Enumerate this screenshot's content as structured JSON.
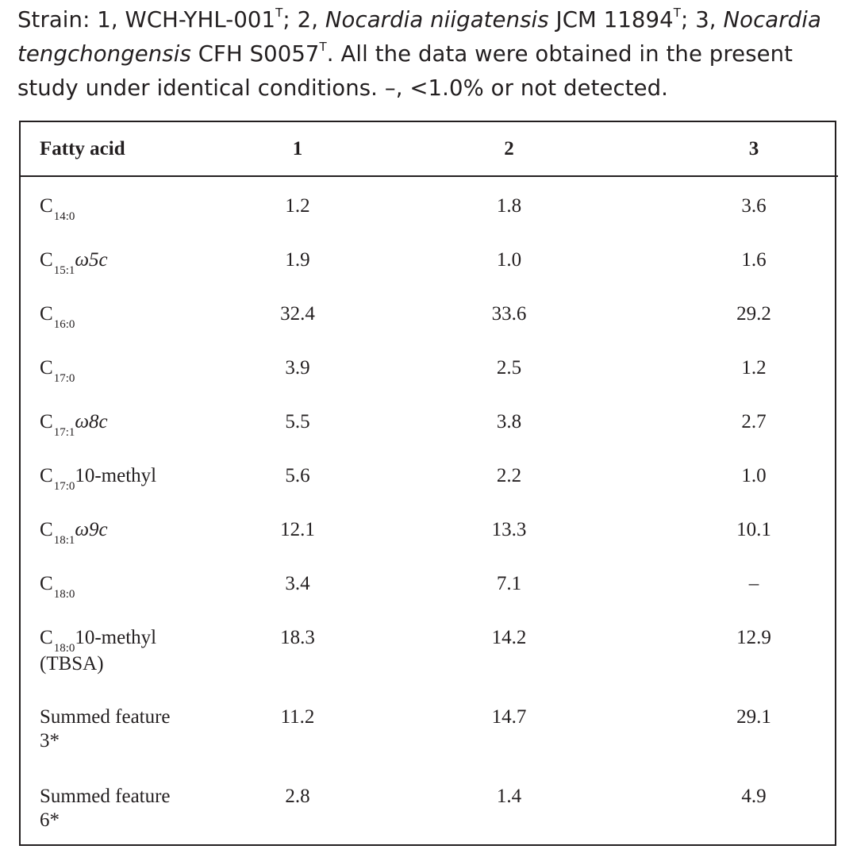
{
  "caption": {
    "p1": "Strain: 1, WCH-YHL-001",
    "sup1": "T",
    "p2": "; 2, ",
    "it1": "Nocardia niigatensis",
    "p3": " JCM 11894",
    "sup2": "T",
    "p4": "; 3, ",
    "it2": "Nocardia tengchongensis",
    "p5": " CFH S0057",
    "sup3": "T",
    "p6": ". All the data were obtained in the present study under identical conditions. –, <1.0% or not detected."
  },
  "table": {
    "headers": [
      "Fatty acid",
      "1",
      "2",
      "3"
    ],
    "rows": [
      {
        "base": "C",
        "sub": "14:0",
        "suffix": "",
        "values": [
          "1.2",
          "1.8",
          "3.6"
        ]
      },
      {
        "base": "C",
        "sub": "15:1",
        "suffix": "ω5c",
        "values": [
          "1.9",
          "1.0",
          "1.6"
        ]
      },
      {
        "base": "C",
        "sub": "16:0",
        "suffix": "",
        "values": [
          "32.4",
          "33.6",
          "29.2"
        ]
      },
      {
        "base": "C",
        "sub": "17:0",
        "suffix": "",
        "values": [
          "3.9",
          "2.5",
          "1.2"
        ]
      },
      {
        "base": "C",
        "sub": "17:1",
        "suffix": "ω8c",
        "values": [
          "5.5",
          "3.8",
          "2.7"
        ]
      },
      {
        "base": "C",
        "sub": "17:0",
        "suffix": "10-methyl",
        "values": [
          "5.6",
          "2.2",
          "1.0"
        ]
      },
      {
        "base": "C",
        "sub": "18:1",
        "suffix": "ω9c",
        "values": [
          "12.1",
          "13.3",
          "10.1"
        ]
      },
      {
        "base": "C",
        "sub": "18:0",
        "suffix": "",
        "values": [
          "3.4",
          "7.1",
          "–"
        ]
      },
      {
        "base": "C",
        "sub": "18:0",
        "suffix": "10-methyl",
        "line2": "(TBSA)",
        "values": [
          "18.3",
          "14.2",
          "12.9"
        ]
      },
      {
        "label": "Summed feature",
        "line2": "3*",
        "values": [
          "11.2",
          "14.7",
          "29.1"
        ]
      },
      {
        "label": "Summed feature",
        "line2": "6*",
        "values": [
          "2.8",
          "1.4",
          "4.9"
        ]
      }
    ]
  }
}
